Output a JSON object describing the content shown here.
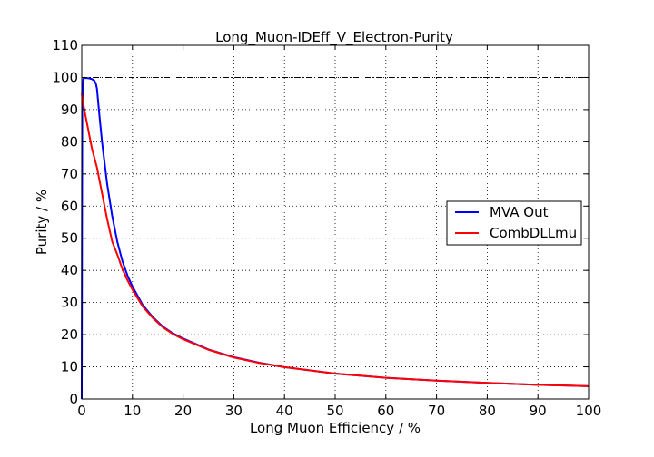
{
  "chart_data": {
    "type": "line",
    "title": "Long_Muon-IDEff_V_Electron-Purity",
    "xlabel": "Long Muon Efficiency / %",
    "ylabel": "Purity / %",
    "xlim": [
      0,
      100
    ],
    "ylim": [
      0,
      110
    ],
    "xticks": [
      "0",
      "10",
      "20",
      "30",
      "40",
      "50",
      "60",
      "70",
      "80",
      "90",
      "100"
    ],
    "yticks": [
      "0",
      "10",
      "20",
      "30",
      "40",
      "50",
      "60",
      "70",
      "80",
      "90",
      "100",
      "110"
    ],
    "grid": true,
    "legend_position": "center-right",
    "reference_line": {
      "y": 100,
      "style": "dash-dot",
      "color": "#000000"
    },
    "series": [
      {
        "name": "MVA Out",
        "color": "#0000ff",
        "x": [
          0,
          0.1,
          0.3,
          0.5,
          1,
          1.5,
          2,
          2.5,
          2.8,
          3,
          3.5,
          4,
          5,
          6,
          7,
          8,
          9,
          10,
          12,
          14,
          16,
          18,
          20,
          25,
          30,
          35,
          40,
          50,
          60,
          70,
          80,
          90,
          100
        ],
        "y": [
          0,
          90,
          99.5,
          99.8,
          99.8,
          99.7,
          99.5,
          99,
          98,
          96.5,
          88,
          80,
          67,
          57,
          49,
          43,
          38.5,
          35,
          29.3,
          25.5,
          22.5,
          20.4,
          18.8,
          15.4,
          13,
          11.3,
          9.9,
          7.9,
          6.6,
          5.7,
          5.0,
          4.4,
          4.0
        ]
      },
      {
        "name": "CombDLLmu",
        "color": "#ff0000",
        "x": [
          0,
          0.5,
          1,
          1.5,
          2,
          3,
          4,
          5,
          6,
          7,
          8,
          9,
          10,
          12,
          14,
          16,
          18,
          20,
          25,
          30,
          35,
          40,
          50,
          60,
          70,
          80,
          90,
          100
        ],
        "y": [
          95,
          90,
          86,
          82,
          78,
          72,
          64,
          56,
          49,
          45,
          40.5,
          37,
          34,
          28.8,
          25.2,
          22.3,
          20.2,
          18.6,
          15.3,
          12.9,
          11.2,
          9.9,
          7.9,
          6.6,
          5.7,
          5.0,
          4.4,
          4.0
        ]
      }
    ]
  }
}
